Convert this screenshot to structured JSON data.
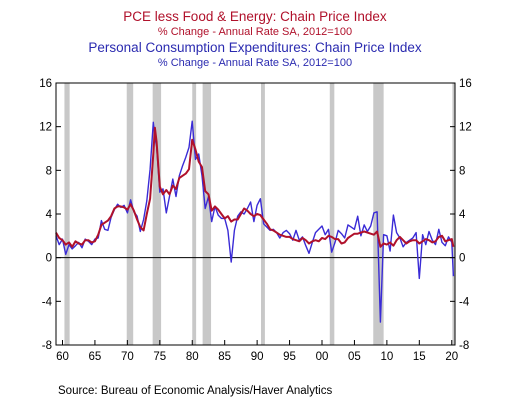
{
  "chart_data": {
    "type": "line",
    "titles": [
      "PCE less Food & Energy: Chain Price Index",
      "% Change - Annual Rate    SA, 2012=100",
      "Personal Consumption Expenditures: Chain Price Index",
      "% Change - Annual Rate    SA, 2012=100"
    ],
    "source": "Source:  Bureau of Economic Analysis/Haver Analytics",
    "colors": {
      "core": "#b0112b",
      "headline": "#3a2bd6",
      "recession": "#c8c8c8"
    },
    "xlim": [
      1959,
      2020.5
    ],
    "ylim": [
      -8,
      16
    ],
    "y_ticks": [
      -8,
      -4,
      0,
      4,
      8,
      12,
      16
    ],
    "y_tick_labels": [
      "-8",
      "-4",
      "0",
      "4",
      "8",
      "12",
      "16"
    ],
    "x_ticks": [
      1960,
      1965,
      1970,
      1975,
      1980,
      1985,
      1990,
      1995,
      2000,
      2005,
      2010,
      2015,
      2020
    ],
    "x_tick_labels": [
      "60",
      "65",
      "70",
      "75",
      "80",
      "85",
      "90",
      "95",
      "00",
      "05",
      "10",
      "15",
      "20"
    ],
    "recessions": [
      [
        1960.3,
        1961.1
      ],
      [
        1969.9,
        1970.9
      ],
      [
        1973.9,
        1975.2
      ],
      [
        1980.0,
        1980.6
      ],
      [
        1981.6,
        1982.9
      ],
      [
        1990.6,
        1991.2
      ],
      [
        2001.2,
        2001.9
      ],
      [
        2007.9,
        2009.5
      ],
      [
        2020.1,
        2020.4
      ]
    ],
    "series": [
      {
        "name": "PCE less Food & Energy: Chain Price Index",
        "x": [
          1959.0,
          1959.5,
          1960.0,
          1960.5,
          1961.0,
          1961.5,
          1962.0,
          1962.5,
          1963.0,
          1963.5,
          1964.0,
          1964.5,
          1965.0,
          1965.5,
          1966.0,
          1966.5,
          1967.0,
          1967.5,
          1968.0,
          1968.5,
          1969.0,
          1969.5,
          1970.0,
          1970.5,
          1971.0,
          1971.5,
          1972.0,
          1972.5,
          1973.0,
          1973.5,
          1974.0,
          1974.25,
          1974.5,
          1975.0,
          1975.5,
          1976.0,
          1976.5,
          1977.0,
          1977.5,
          1978.0,
          1978.5,
          1979.0,
          1979.5,
          1980.0,
          1980.5,
          1981.0,
          1981.5,
          1982.0,
          1982.5,
          1983.0,
          1983.5,
          1984.0,
          1984.5,
          1985.0,
          1985.5,
          1986.0,
          1986.5,
          1987.0,
          1987.5,
          1988.0,
          1988.5,
          1989.0,
          1989.5,
          1990.0,
          1990.5,
          1991.0,
          1991.5,
          1992.0,
          1992.5,
          1993.0,
          1993.5,
          1994.0,
          1994.5,
          1995.0,
          1995.5,
          1996.0,
          1996.5,
          1997.0,
          1997.5,
          1998.0,
          1998.5,
          1999.0,
          1999.5,
          2000.0,
          2000.5,
          2001.0,
          2001.5,
          2002.0,
          2002.5,
          2003.0,
          2003.5,
          2004.0,
          2004.5,
          2005.0,
          2005.5,
          2006.0,
          2006.5,
          2007.0,
          2007.5,
          2008.0,
          2008.5,
          2009.0,
          2009.5,
          2010.0,
          2010.5,
          2011.0,
          2011.5,
          2012.0,
          2012.5,
          2013.0,
          2013.5,
          2014.0,
          2014.5,
          2015.0,
          2015.5,
          2016.0,
          2016.5,
          2017.0,
          2017.5,
          2018.0,
          2018.5,
          2019.0,
          2019.5,
          2020.0,
          2020.25
        ],
        "values": [
          2.3,
          1.8,
          1.6,
          1.2,
          1.4,
          1.0,
          1.5,
          1.3,
          1.2,
          1.6,
          1.6,
          1.4,
          1.5,
          2.1,
          3.0,
          3.2,
          3.4,
          3.8,
          4.5,
          4.7,
          4.7,
          4.6,
          4.4,
          4.9,
          4.3,
          3.5,
          2.8,
          2.5,
          4.0,
          5.4,
          9.5,
          11.9,
          10.6,
          6.5,
          5.8,
          6.2,
          5.8,
          6.6,
          6.3,
          7.3,
          7.5,
          7.7,
          8.1,
          10.8,
          9.9,
          8.8,
          8.3,
          6.1,
          5.8,
          4.3,
          4.7,
          4.4,
          4.0,
          3.6,
          3.8,
          3.3,
          3.5,
          3.5,
          4.0,
          4.5,
          4.3,
          4.0,
          3.8,
          4.0,
          3.9,
          3.5,
          3.1,
          2.6,
          2.5,
          2.3,
          2.1,
          2.0,
          1.9,
          1.9,
          1.7,
          1.6,
          1.5,
          1.8,
          1.6,
          1.3,
          1.5,
          1.6,
          1.5,
          1.8,
          1.7,
          2.0,
          1.9,
          1.7,
          1.7,
          1.3,
          1.4,
          1.8,
          2.0,
          2.2,
          2.2,
          2.3,
          2.4,
          2.3,
          2.2,
          2.1,
          2.4,
          1.0,
          1.3,
          1.2,
          1.4,
          1.1,
          1.6,
          1.9,
          1.6,
          1.3,
          1.5,
          1.6,
          1.6,
          1.3,
          1.5,
          1.7,
          1.6,
          1.4,
          1.5,
          1.9,
          2.0,
          1.5,
          1.6,
          1.7,
          1.0
        ]
      },
      {
        "name": "Personal Consumption Expenditures: Chain Price Index",
        "x": [
          1959.0,
          1959.5,
          1960.0,
          1960.5,
          1961.0,
          1961.5,
          1962.0,
          1962.5,
          1963.0,
          1963.5,
          1964.0,
          1964.5,
          1965.0,
          1965.5,
          1966.0,
          1966.5,
          1967.0,
          1967.5,
          1968.0,
          1968.5,
          1969.0,
          1969.5,
          1970.0,
          1970.5,
          1971.0,
          1971.5,
          1972.0,
          1972.5,
          1973.0,
          1973.5,
          1974.0,
          1974.25,
          1974.5,
          1975.0,
          1975.5,
          1976.0,
          1976.5,
          1977.0,
          1977.5,
          1978.0,
          1978.5,
          1979.0,
          1979.5,
          1980.0,
          1980.5,
          1981.0,
          1981.5,
          1982.0,
          1982.5,
          1983.0,
          1983.5,
          1984.0,
          1984.5,
          1985.0,
          1985.5,
          1986.0,
          1986.5,
          1987.0,
          1987.5,
          1988.0,
          1988.5,
          1989.0,
          1989.5,
          1990.0,
          1990.5,
          1991.0,
          1991.5,
          1992.0,
          1992.5,
          1993.0,
          1993.5,
          1994.0,
          1994.5,
          1995.0,
          1995.5,
          1996.0,
          1996.5,
          1997.0,
          1997.5,
          1998.0,
          1998.5,
          1999.0,
          1999.5,
          2000.0,
          2000.5,
          2001.0,
          2001.5,
          2002.0,
          2002.5,
          2003.0,
          2003.5,
          2004.0,
          2004.5,
          2005.0,
          2005.5,
          2006.0,
          2006.5,
          2007.0,
          2007.5,
          2008.0,
          2008.5,
          2009.0,
          2009.5,
          2010.0,
          2010.5,
          2011.0,
          2011.5,
          2012.0,
          2012.5,
          2013.0,
          2013.5,
          2014.0,
          2014.5,
          2015.0,
          2015.5,
          2016.0,
          2016.5,
          2017.0,
          2017.5,
          2018.0,
          2018.5,
          2019.0,
          2019.5,
          2020.0,
          2020.25
        ],
        "values": [
          2.0,
          1.2,
          1.7,
          0.3,
          1.2,
          0.8,
          1.1,
          1.4,
          0.9,
          1.7,
          1.5,
          1.2,
          1.7,
          1.8,
          3.4,
          2.6,
          2.5,
          3.7,
          4.4,
          4.9,
          4.6,
          4.8,
          4.1,
          5.3,
          4.2,
          3.8,
          2.4,
          3.5,
          5.2,
          8.1,
          12.4,
          11.0,
          10.2,
          6.0,
          6.3,
          4.1,
          5.6,
          7.2,
          5.6,
          7.5,
          8.4,
          9.2,
          10.1,
          12.5,
          9.0,
          9.5,
          7.5,
          4.5,
          5.6,
          3.3,
          4.7,
          3.9,
          3.6,
          3.6,
          2.5,
          -0.4,
          2.5,
          3.8,
          4.2,
          4.0,
          4.5,
          5.1,
          3.3,
          4.8,
          5.4,
          3.1,
          2.8,
          2.5,
          2.6,
          2.3,
          1.8,
          2.3,
          2.5,
          2.2,
          1.6,
          2.5,
          1.6,
          1.9,
          1.1,
          0.4,
          1.4,
          2.3,
          2.6,
          2.9,
          2.1,
          2.6,
          0.5,
          1.4,
          2.5,
          2.2,
          1.8,
          3.0,
          2.8,
          2.6,
          3.8,
          2.0,
          3.0,
          2.4,
          2.9,
          4.1,
          4.2,
          -5.9,
          2.1,
          2.0,
          0.6,
          3.9,
          2.3,
          1.8,
          1.0,
          1.4,
          1.6,
          1.8,
          2.3,
          -1.9,
          2.1,
          1.2,
          2.4,
          1.6,
          1.2,
          2.6,
          1.4,
          1.1,
          1.9,
          1.4,
          -1.7
        ]
      }
    ]
  }
}
